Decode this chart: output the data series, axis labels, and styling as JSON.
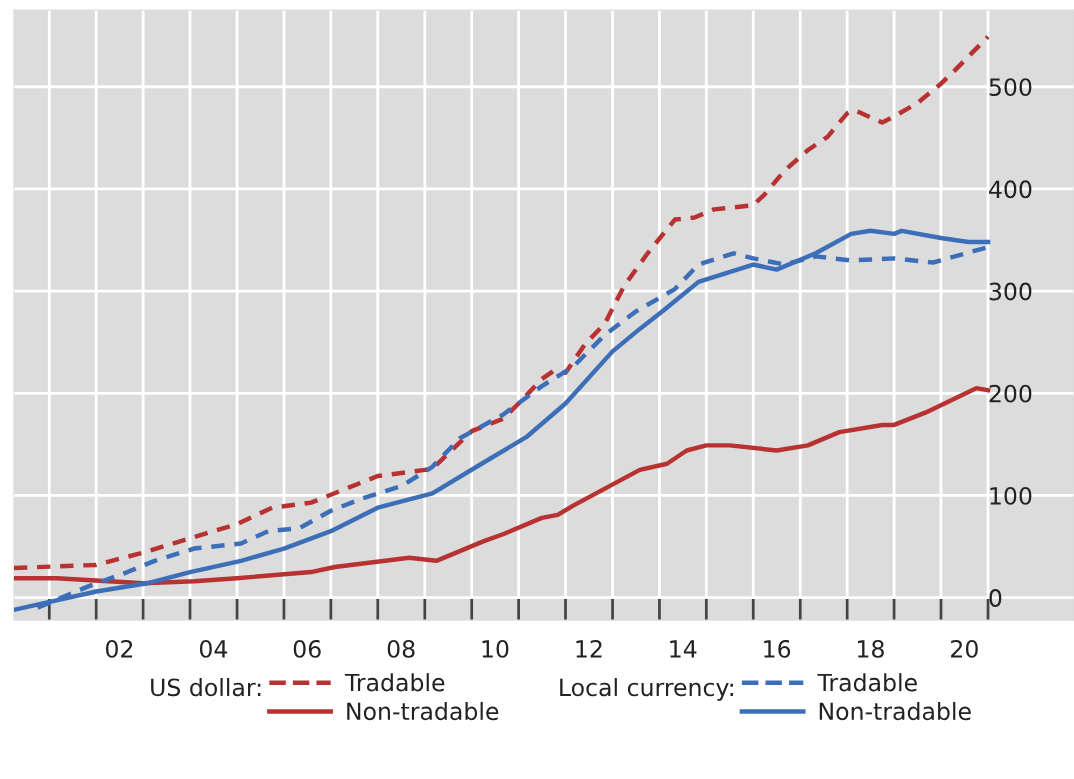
{
  "chart_data": {
    "type": "line",
    "annotations": [
      "US dollar:",
      "Local currency:"
    ],
    "series": [
      {
        "name": "Tradable",
        "color": "#b83232",
        "line_style": "dashed",
        "x": [
          "2000-04",
          "2002-01",
          "2003-01",
          "2004-01",
          "2005-01",
          "2005-10",
          "2006-08",
          "2008-01",
          "2009-01",
          "2009-03",
          "2010-01",
          "2010-09",
          "2011-01",
          "2011-07",
          "2011-10",
          "2012-01",
          "2012-06",
          "2012-11",
          "2013-04",
          "2013-10",
          "2014-05",
          "2014-10",
          "2015-03",
          "2016-01",
          "2016-04",
          "2016-09",
          "2017-03",
          "2017-08",
          "2018-01",
          "2018-03",
          "2018-10",
          "2019-01",
          "2019-07",
          "2020-01",
          "2020-04",
          "2021-01"
        ],
        "values": [
          29,
          32,
          44,
          58,
          72,
          88,
          93,
          119,
          125,
          126,
          163,
          175,
          190,
          214,
          222,
          220,
          248,
          268,
          305,
          337,
          370,
          372,
          380,
          384,
          395,
          418,
          438,
          451,
          474,
          477,
          465,
          471,
          484,
          503,
          514,
          549
        ]
      },
      {
        "name": "Non-tradable",
        "color": "#b83232",
        "line_style": "solid",
        "x": [
          "2000-04",
          "2001-03",
          "2003-01",
          "2004-02",
          "2005-01",
          "2006-08",
          "2007-02",
          "2008-09",
          "2009-04",
          "2010-04",
          "2010-09",
          "2011-07",
          "2011-11",
          "2012-03",
          "2013-08",
          "2014-03",
          "2014-08",
          "2015-01",
          "2015-07",
          "2016-07",
          "2017-03",
          "2017-11",
          "2018-10",
          "2019-01",
          "2019-09",
          "2020-03",
          "2020-10",
          "2021-01"
        ],
        "values": [
          19,
          19,
          14,
          16,
          19,
          25,
          30,
          39,
          36,
          55,
          62,
          78,
          81,
          90,
          125,
          131,
          144,
          149,
          149,
          144,
          149,
          162,
          169,
          169,
          181,
          192,
          205,
          203
        ]
      },
      {
        "name": "Tradable",
        "color": "#3d6fb8",
        "line_style": "dashed",
        "x": [
          "2000-10",
          "2001-11",
          "2002-09",
          "2003-04",
          "2004-02",
          "2005-02",
          "2005-09",
          "2006-05",
          "2007-01",
          "2007-09",
          "2008-07",
          "2009-03",
          "2009-10",
          "2010-09",
          "2011-07",
          "2012-03",
          "2012-11",
          "2013-07",
          "2014-05",
          "2014-11",
          "2015-08",
          "2016-01",
          "2016-09",
          "2017-05",
          "2018-02",
          "2019-01",
          "2019-11",
          "2021-01"
        ],
        "values": [
          -10,
          11,
          25,
          36,
          48,
          53,
          65,
          68,
          85,
          97,
          109,
          128,
          156,
          179,
          207,
          226,
          257,
          280,
          302,
          326,
          337,
          332,
          326,
          334,
          330,
          332,
          328,
          343
        ]
      },
      {
        "name": "Non-tradable",
        "color": "#3d6fb8",
        "line_style": "solid",
        "x": [
          "2000-04",
          "2002-01",
          "2003-02",
          "2004-01",
          "2005-02",
          "2006-01",
          "2007-01",
          "2008-01",
          "2009-03",
          "2010-04",
          "2011-03",
          "2012-01",
          "2013-01",
          "2013-08",
          "2014-02",
          "2014-11",
          "2016-01",
          "2016-07",
          "2017-05",
          "2018-02",
          "2018-07",
          "2019-01",
          "2019-03",
          "2020-01",
          "2020-08",
          "2021-01"
        ],
        "values": [
          -12,
          6,
          14,
          25,
          36,
          48,
          65,
          88,
          102,
          132,
          157,
          190,
          241,
          263,
          281,
          309,
          326,
          321,
          337,
          356,
          359,
          356,
          359,
          352,
          348,
          348
        ]
      }
    ],
    "xlim": [
      "2000-04",
      "2022-11"
    ],
    "ylim": [
      -22,
      575
    ],
    "xticks": [
      {
        "value": "2001",
        "label": null
      },
      {
        "value": "2002",
        "label": null
      },
      {
        "value": "2003",
        "label": null
      },
      {
        "value": "2004",
        "label": null
      },
      {
        "value": "2005",
        "label": null
      },
      {
        "value": "2006",
        "label": null
      },
      {
        "value": "2007",
        "label": null
      },
      {
        "value": "2008",
        "label": null
      },
      {
        "value": "2009",
        "label": null
      },
      {
        "value": "2010",
        "label": null
      },
      {
        "value": "2011",
        "label": null
      },
      {
        "value": "2012",
        "label": null
      },
      {
        "value": "2013",
        "label": null
      },
      {
        "value": "2014",
        "label": null
      },
      {
        "value": "2015",
        "label": null
      },
      {
        "value": "2016",
        "label": null
      },
      {
        "value": "2017",
        "label": null
      },
      {
        "value": "2018",
        "label": null
      },
      {
        "value": "2019",
        "label": null
      },
      {
        "value": "2020",
        "label": null
      },
      {
        "value": "2021",
        "label": null
      },
      {
        "value": "2002-07",
        "label": "02"
      },
      {
        "value": "2004-07",
        "label": "04"
      },
      {
        "value": "2006-07",
        "label": "06"
      },
      {
        "value": "2008-07",
        "label": "08"
      },
      {
        "value": "2010-07",
        "label": "10"
      },
      {
        "value": "2012-07",
        "label": "12"
      },
      {
        "value": "2014-07",
        "label": "14"
      },
      {
        "value": "2016-07",
        "label": "16"
      },
      {
        "value": "2018-07",
        "label": "18"
      },
      {
        "value": "2020-07",
        "label": "20"
      }
    ],
    "yticks": [
      0,
      100,
      200,
      300,
      400,
      500
    ],
    "grid": true,
    "legend": "bottom",
    "marker": "none"
  }
}
